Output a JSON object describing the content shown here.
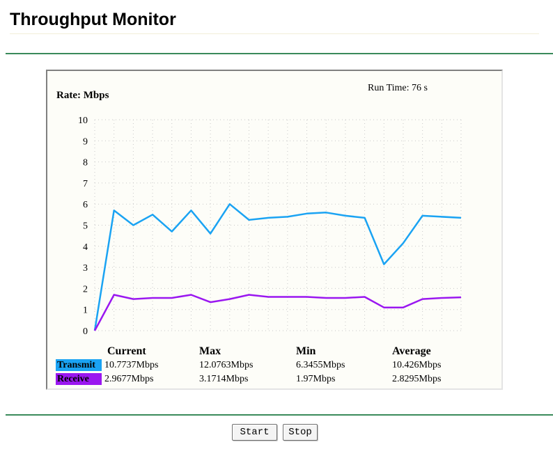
{
  "page": {
    "title": "Throughput Monitor"
  },
  "chart": {
    "rate_label": "Rate: Mbps",
    "run_time_label": "Run Time:",
    "run_time_value": "76 s"
  },
  "chart_data": {
    "type": "line",
    "ylabel": "Rate: Mbps",
    "ylim": [
      0,
      10
    ],
    "yticks": [
      0,
      1,
      2,
      3,
      4,
      5,
      6,
      7,
      8,
      9,
      10
    ],
    "grid": true,
    "series": [
      {
        "name": "Transmit",
        "color": "#1aa3f3",
        "values": [
          0,
          5.7,
          5.0,
          5.5,
          4.7,
          5.7,
          4.6,
          6.0,
          5.25,
          5.35,
          5.4,
          5.55,
          5.6,
          5.45,
          5.35,
          3.15,
          4.15,
          5.45,
          5.4,
          5.35
        ]
      },
      {
        "name": "Receive",
        "color": "#9a17f0",
        "values": [
          0,
          1.7,
          1.5,
          1.55,
          1.55,
          1.7,
          1.35,
          1.5,
          1.7,
          1.6,
          1.6,
          1.6,
          1.55,
          1.55,
          1.6,
          1.1,
          1.1,
          1.5,
          1.55,
          1.58
        ]
      }
    ]
  },
  "stats": {
    "headers": {
      "current": "Current",
      "max": "Max",
      "min": "Min",
      "average": "Average"
    },
    "transmit": {
      "label": "Transmit",
      "current": "10.7737Mbps",
      "max": "12.0763Mbps",
      "min": "6.3455Mbps",
      "average": "10.426Mbps"
    },
    "receive": {
      "label": "Receive",
      "current": "2.9677Mbps",
      "max": "3.1714Mbps",
      "min": "1.97Mbps",
      "average": "2.8295Mbps"
    }
  },
  "buttons": {
    "start": "Start",
    "stop": "Stop"
  }
}
